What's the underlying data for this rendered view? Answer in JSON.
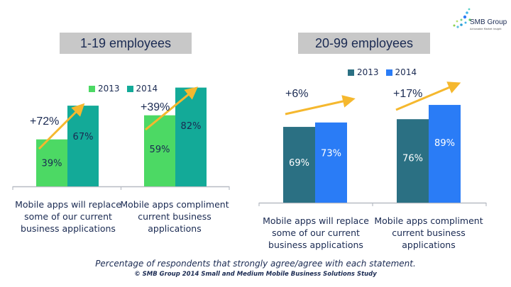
{
  "logo": {
    "name": "SMB Group",
    "tagline": "Actionable Market Insight"
  },
  "panels": [
    {
      "title": "1-19 employees",
      "legend": [
        {
          "label": "2013",
          "color": "#4cd964"
        },
        {
          "label": "2014",
          "color": "#13aa98"
        }
      ]
    },
    {
      "title": "20-99 employees",
      "legend": [
        {
          "label": "2013",
          "color": "#2b7083"
        },
        {
          "label": "2014",
          "color": "#2a7cf6"
        }
      ]
    }
  ],
  "chart_data": [
    {
      "type": "bar",
      "title": "1-19 employees",
      "categories": [
        "Mobile apps will replace some of our current business applications",
        "Mobile apps compliment current business applications"
      ],
      "category_lines": [
        [
          "Mobile apps will replace",
          "some of our current",
          "business applications"
        ],
        [
          "Mobile apps compliment",
          "current business",
          "applications"
        ]
      ],
      "series": [
        {
          "name": "2013",
          "values": [
            39,
            59
          ],
          "labels": [
            "39%",
            "59%"
          ],
          "color": "#4cd964",
          "label_color": "#1a2a52"
        },
        {
          "name": "2014",
          "values": [
            67,
            82
          ],
          "labels": [
            "67%",
            "82%"
          ],
          "color": "#13aa98",
          "label_color": "#1a2a52"
        }
      ],
      "annotations": [
        "+72%",
        "+39%"
      ],
      "ylim": [
        0,
        100
      ],
      "legend_position": "top",
      "grid": false
    },
    {
      "type": "bar",
      "title": "20-99 employees",
      "categories": [
        "Mobile apps will replace some of our current business applications",
        "Mobile apps compliment current business applications"
      ],
      "category_lines": [
        [
          "Mobile apps will replace",
          "some of our current",
          "business applications"
        ],
        [
          "Mobile apps compliment",
          "current business",
          "applications"
        ]
      ],
      "series": [
        {
          "name": "2013",
          "values": [
            69,
            76
          ],
          "labels": [
            "69%",
            "76%"
          ],
          "color": "#2b7083",
          "label_color": "#ffffff"
        },
        {
          "name": "2014",
          "values": [
            73,
            89
          ],
          "labels": [
            "73%",
            "89%"
          ],
          "color": "#2a7cf6",
          "label_color": "#ffffff"
        }
      ],
      "annotations": [
        "+6%",
        "+17%"
      ],
      "ylim": [
        0,
        100
      ],
      "legend_position": "top",
      "grid": false
    }
  ],
  "footer": {
    "caption": "Percentage of respondents that strongly agree/agree with each statement.",
    "source": "© SMB Group 2014 Small and Medium Mobile Business Solutions Study"
  }
}
